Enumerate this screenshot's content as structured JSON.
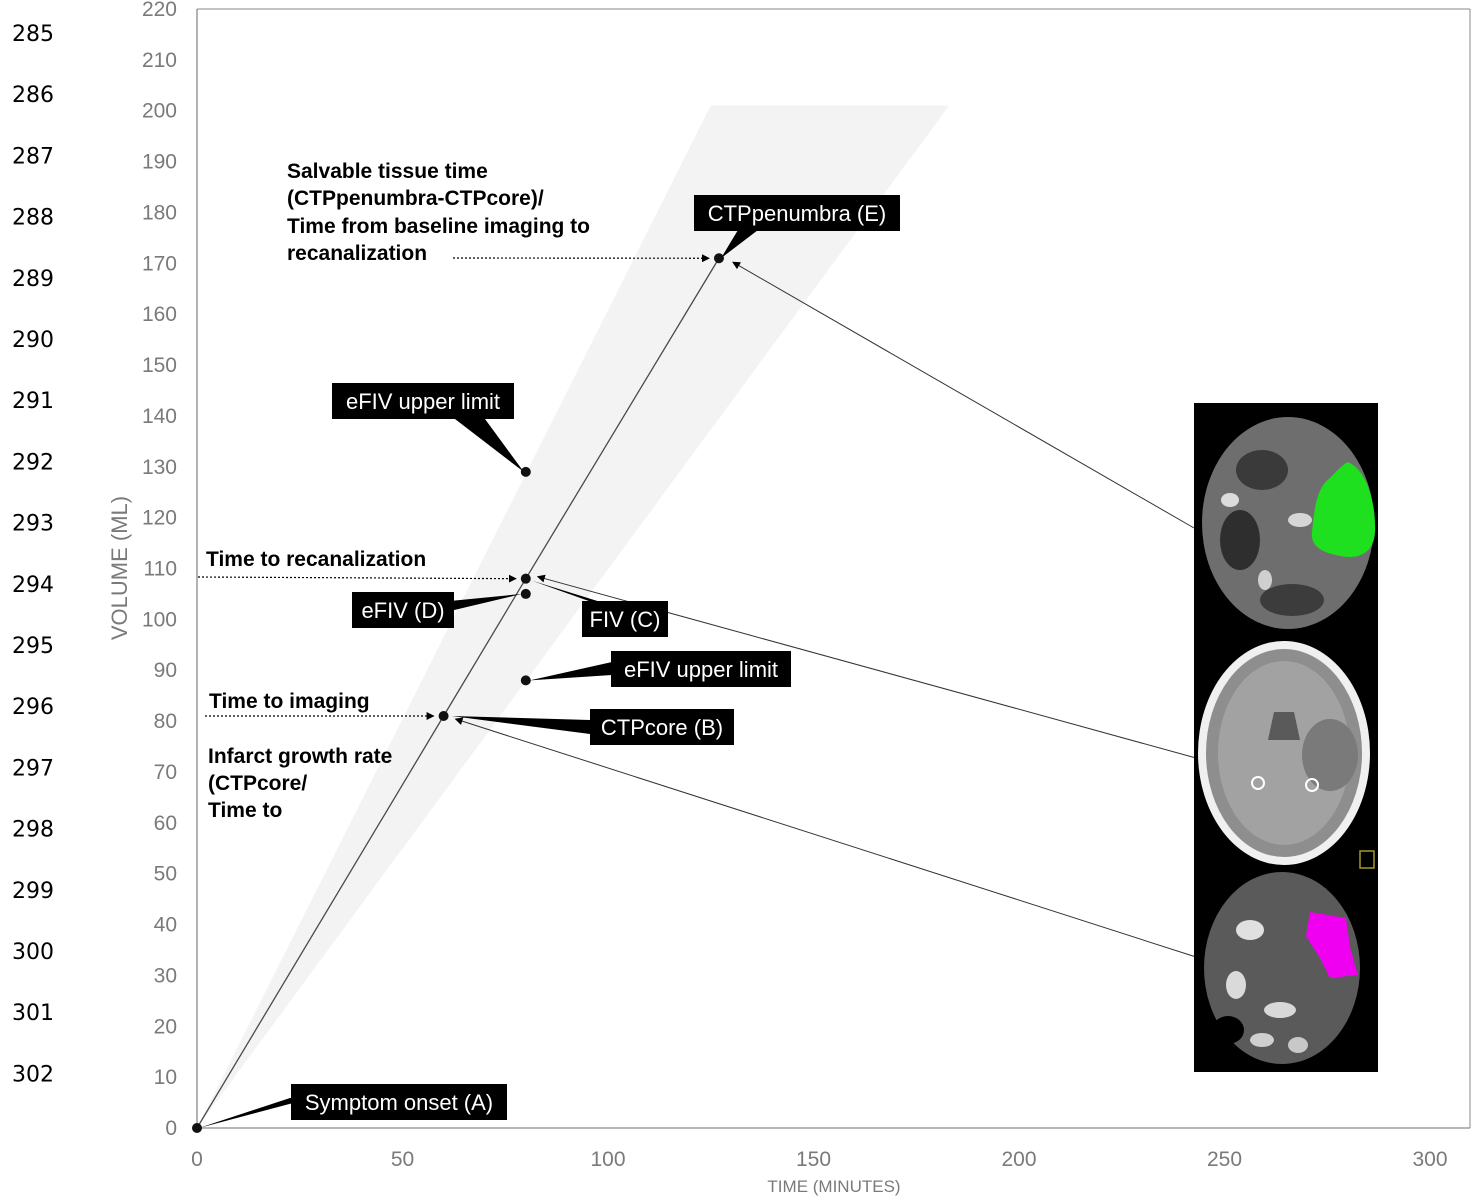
{
  "line_numbers": [
    "285",
    "286",
    "287",
    "288",
    "289",
    "290",
    "291",
    "292",
    "293",
    "294",
    "295",
    "296",
    "297",
    "298",
    "299",
    "300",
    "301",
    "302"
  ],
  "chart_data": {
    "type": "line",
    "xlabel": "TIME (MINUTES)",
    "ylabel": "VOLUME (ML)",
    "xlim": [
      0,
      300
    ],
    "ylim": [
      0,
      220
    ],
    "x_ticks": [
      0,
      50,
      100,
      150,
      200,
      250,
      300
    ],
    "y_ticks": [
      0,
      10,
      20,
      30,
      40,
      50,
      60,
      70,
      80,
      90,
      100,
      110,
      120,
      130,
      140,
      150,
      160,
      170,
      180,
      190,
      200,
      210,
      220
    ],
    "grid": false,
    "shaded_range": {
      "x_start": 0,
      "y_start": 0,
      "top_y": 201,
      "top_x_from": 125,
      "top_x_to": 183
    },
    "series": [
      {
        "x": [
          0,
          60,
          80,
          127
        ],
        "y": [
          0,
          81,
          108,
          171
        ]
      }
    ],
    "points": [
      {
        "x": 0,
        "y": 0
      },
      {
        "x": 60,
        "y": 81
      },
      {
        "x": 80,
        "y": 108
      },
      {
        "x": 80,
        "y": 105
      },
      {
        "x": 80,
        "y": 88
      },
      {
        "x": 80,
        "y": 129
      },
      {
        "x": 127,
        "y": 171
      }
    ],
    "labels": {
      "symptom_onset": "Symptom onset (A)",
      "ctp_core": "CTPcore (B)",
      "fiv": "FIV (C)",
      "efiv": "eFIV (D)",
      "efiv_upper_low": "eFIV upper limit",
      "efiv_upper_high": "eFIV upper limit",
      "ctp_penumbra": "CTPpenumbra (E)"
    },
    "annotations": {
      "salvable": [
        "Salvable tissue time",
        "(CTPpenumbra-CTPcore)/",
        "Time from baseline imaging to",
        "recanalization"
      ],
      "time_to_recanalization": "Time to recanalization",
      "time_to_imaging": "Time to imaging",
      "infarct_growth": [
        "Infarct growth rate",
        "(CTPcore/",
        "Time to"
      ]
    }
  },
  "colors": {
    "penumbra_overlay": "#1ee01e",
    "core_overlay": "#f000f0",
    "axis": "#8a8a8a",
    "shade": "#f3f3f3"
  }
}
